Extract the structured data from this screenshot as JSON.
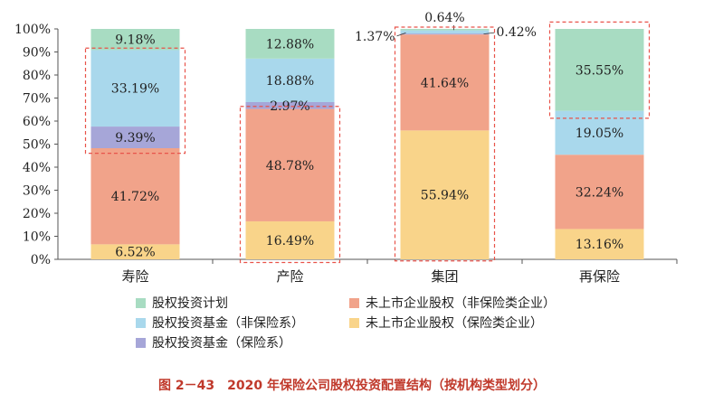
{
  "chart_data": {
    "type": "bar",
    "stacked": true,
    "categories": [
      "寿险",
      "产险",
      "集团",
      "再保险"
    ],
    "ylim": [
      0,
      100
    ],
    "yticks": [
      "0%",
      "10%",
      "20%",
      "30%",
      "40%",
      "50%",
      "60%",
      "70%",
      "80%",
      "90%",
      "100%"
    ],
    "series": [
      {
        "name": "未上市企业股权（保险类企业）",
        "color": "#f9d48a",
        "values": [
          6.52,
          16.49,
          55.94,
          13.16
        ]
      },
      {
        "name": "未上市企业股权（非保险类企业）",
        "color": "#f1a38a",
        "values": [
          41.72,
          48.78,
          41.64,
          32.24
        ]
      },
      {
        "name": "股权投资基金（保险系）",
        "color": "#a6a6d8",
        "values": [
          9.39,
          2.97,
          0.42,
          0
        ]
      },
      {
        "name": "股权投资基金（非保险系）",
        "color": "#a9d8ec",
        "values": [
          33.19,
          18.88,
          1.37,
          19.05
        ]
      },
      {
        "name": "股权投资计划",
        "color": "#a8dcc2",
        "values": [
          9.18,
          12.88,
          0.64,
          35.55
        ]
      }
    ],
    "labels": [
      [
        "6.52%",
        "41.72%",
        "9.39%",
        "33.19%",
        "9.18%"
      ],
      [
        "16.49%",
        "48.78%",
        "2.97%",
        "18.88%",
        "12.88%"
      ],
      [
        "55.94%",
        "41.64%",
        "0.42%",
        "1.37%",
        "0.64%"
      ],
      [
        "13.16%",
        "32.24%",
        "",
        "19.05%",
        "35.55%"
      ]
    ],
    "legend": [
      {
        "label": "股权投资计划",
        "color": "#a8dcc2"
      },
      {
        "label": "未上市企业股权（非保险类企业）",
        "color": "#f1a38a"
      },
      {
        "label": "股权投资基金（非保险系）",
        "color": "#a9d8ec"
      },
      {
        "label": "未上市企业股权（保险类企业）",
        "color": "#f9d48a"
      },
      {
        "label": "股权投资基金（保险系）",
        "color": "#a6a6d8"
      }
    ],
    "highlight_color": "#e8534a"
  },
  "caption": "图 2－43　2020 年保险公司股权投资配置结构（按机构类型划分）"
}
